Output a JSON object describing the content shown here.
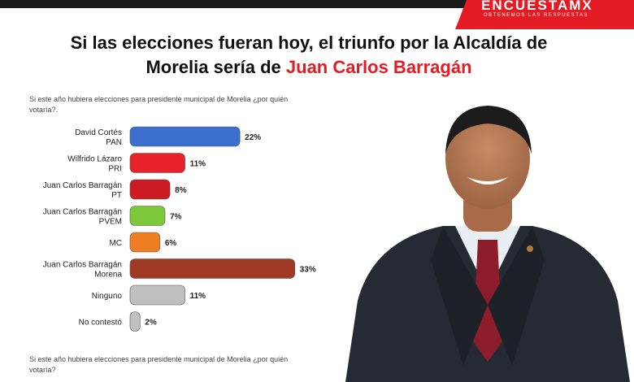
{
  "brand": {
    "name": "ENCUESTAMX",
    "tagline": "OBTENEMOS LAS RESPUESTAS"
  },
  "title": {
    "line1": "Si las elecciones fueran hoy, el triunfo por la Alcaldía de",
    "line2_prefix": "Morelia sería de ",
    "line2_highlight": "Juan Carlos Barragán"
  },
  "question": "Si este año hubiera elecciones para presidente municipal de Morelia ¿por quién votaría?.",
  "footnote": "Si este año hubiera elecciones para presidente municipal de Morelia ¿por quién votaría?",
  "chart_data": {
    "type": "bar",
    "orientation": "horizontal",
    "categories": [
      [
        "David Cortés",
        "PAN"
      ],
      [
        "Wilfrido Lázaro",
        "PRI"
      ],
      [
        "Juan Carlos Barragán",
        "PT"
      ],
      [
        "Juan Carlos Barragán",
        "PVEM"
      ],
      [
        "MC"
      ],
      [
        "Juan Carlos Barragán",
        "Morena"
      ],
      [
        "Ninguno"
      ],
      [
        "No contestó"
      ]
    ],
    "values": [
      22,
      11,
      8,
      7,
      6,
      33,
      11,
      2
    ],
    "value_labels": [
      "22%",
      "11%",
      "8%",
      "7%",
      "6%",
      "33%",
      "11%",
      "2%"
    ],
    "colors": [
      "#3b6fd0",
      "#e8222a",
      "#cc1b22",
      "#7cc83a",
      "#ef7d22",
      "#a13a24",
      "#bfbfbf",
      "#bfbfbf"
    ],
    "xlim": [
      0,
      35
    ],
    "grid": false
  },
  "icons": {
    "photo": "candidate-portrait"
  }
}
